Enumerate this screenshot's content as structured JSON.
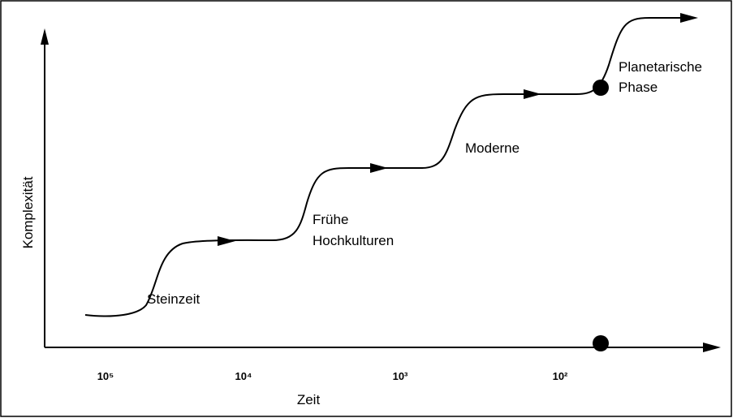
{
  "axes": {
    "y_label": "Komplexität",
    "x_label": "Zeit",
    "x_ticks": [
      "10⁵",
      "10⁴",
      "10³",
      "10²"
    ]
  },
  "stages": [
    {
      "lines": [
        "Steinzeit"
      ]
    },
    {
      "lines": [
        "Frühe",
        "Hochkulturen"
      ]
    },
    {
      "lines": [
        "Moderne"
      ]
    },
    {
      "lines": [
        "Planetarische",
        "Phase"
      ]
    }
  ]
}
